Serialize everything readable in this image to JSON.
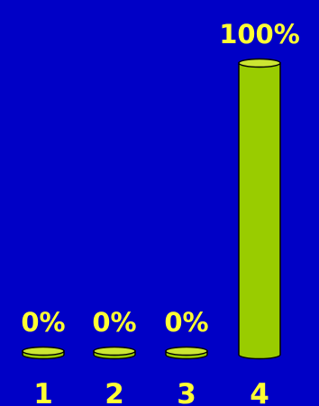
{
  "colors": {
    "background": "#0000c6",
    "bar_body": "#99cc00",
    "bar_top": "#cce633",
    "bar_outline": "#000000",
    "label_text": "#ffff33"
  },
  "chart_data": {
    "type": "bar",
    "categories": [
      "1",
      "2",
      "3",
      "4"
    ],
    "values": [
      0,
      0,
      0,
      100
    ],
    "value_labels": [
      "0%",
      "0%",
      "0%",
      "100%"
    ],
    "ylim": [
      0,
      100
    ],
    "grid": false,
    "legend": "none",
    "bar_style": "cylinder"
  }
}
